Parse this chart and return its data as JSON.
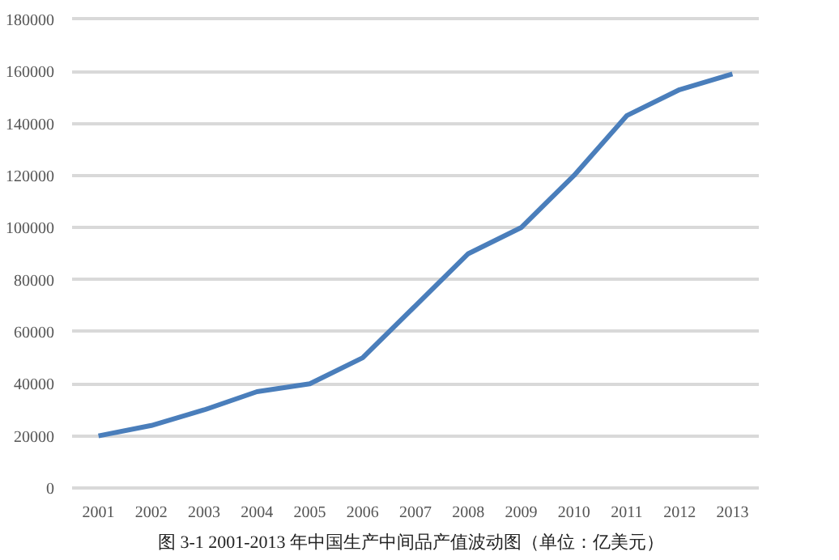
{
  "chart_data": {
    "type": "line",
    "annotations": [
      "图 3-1   2001-2013 年中国生产中间品产值波动图（单位：亿美元）"
    ],
    "categories": [
      "2001",
      "2002",
      "2003",
      "2004",
      "2005",
      "2006",
      "2007",
      "2008",
      "2009",
      "2010",
      "2011",
      "2012",
      "2013"
    ],
    "series": [
      {
        "color": "#4a7ebb",
        "values": [
          20000,
          24000,
          30000,
          37000,
          40000,
          50000,
          70000,
          90000,
          100000,
          120000,
          143000,
          153000,
          159000
        ]
      }
    ],
    "ylim": [
      0,
      180000
    ],
    "yticks": [
      0,
      20000,
      40000,
      60000,
      80000,
      100000,
      120000,
      140000,
      160000,
      180000
    ],
    "grid": "y"
  }
}
